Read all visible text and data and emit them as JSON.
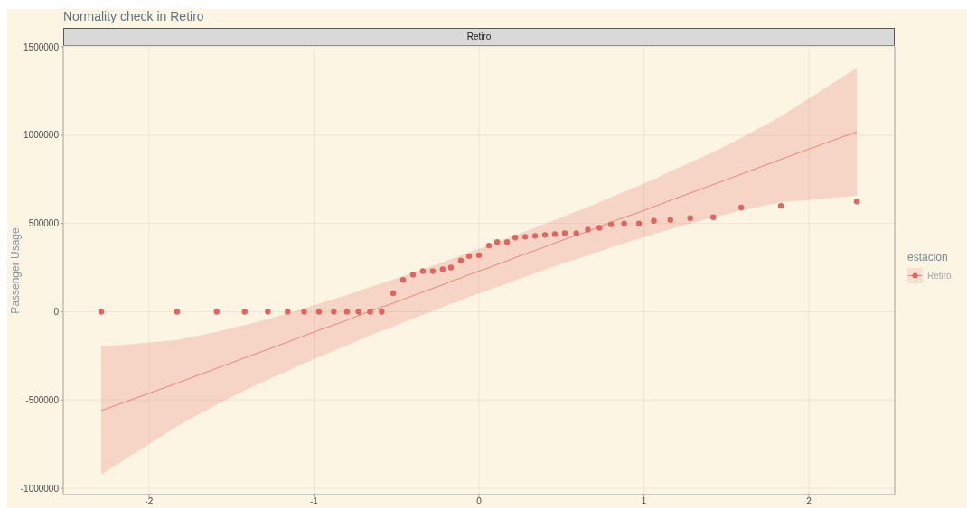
{
  "chart_data": {
    "type": "scatter",
    "title": "Normality check in Retiro",
    "subtitle": "Retiro",
    "ylabel": "Passenger Usage",
    "legend_title": "estacion",
    "legend": "right",
    "grid": true,
    "xlim": [
      -2.52,
      2.52
    ],
    "xticks": [
      -2,
      -1,
      0,
      1,
      2
    ],
    "ylim": [
      -1035000,
      1505000
    ],
    "yticks": [
      -1000000,
      -500000,
      0,
      500000,
      1000000,
      1500000
    ],
    "x": [
      -2.29,
      -1.83,
      -1.59,
      -1.42,
      -1.28,
      -1.16,
      -1.06,
      -0.97,
      -0.88,
      -0.8,
      -0.73,
      -0.66,
      -0.59,
      -0.52,
      -0.46,
      -0.4,
      -0.34,
      -0.28,
      -0.22,
      -0.17,
      -0.11,
      -0.06,
      0,
      0.06,
      0.11,
      0.17,
      0.22,
      0.28,
      0.34,
      0.4,
      0.46,
      0.52,
      0.59,
      0.66,
      0.73,
      0.8,
      0.88,
      0.97,
      1.06,
      1.16,
      1.28,
      1.42,
      1.59,
      1.83,
      2.29
    ],
    "series": [
      {
        "type": "line",
        "color": "#e2635f",
        "values": [
          -560000,
          -404000,
          -320000,
          -261000,
          -213000,
          -172000,
          -136000,
          -104000,
          -75000,
          -48000,
          -22000,
          3000,
          26000,
          49000,
          70000,
          91000,
          112000,
          132000,
          152000,
          172000,
          191000,
          210000,
          230000,
          249000,
          268000,
          288000,
          307000,
          327000,
          347000,
          368000,
          389000,
          410000,
          433000,
          456000,
          481000,
          507000,
          534000,
          563000,
          595000,
          631000,
          672000,
          720000,
          779000,
          863000,
          1019000
        ],
        "lower": [
          -922000,
          -648000,
          -526000,
          -446000,
          -385000,
          -335000,
          -292000,
          -255000,
          -221000,
          -190000,
          -161000,
          -134000,
          -109000,
          -84000,
          -61000,
          -39000,
          -17000,
          4000,
          25000,
          44000,
          64000,
          84000,
          103000,
          122000,
          142000,
          160000,
          179000,
          198000,
          218000,
          237000,
          257000,
          278000,
          298000,
          319000,
          341000,
          364000,
          388000,
          413000,
          440000,
          468000,
          500000,
          534000,
          573000,
          619000,
          657000
        ],
        "upper": [
          -198000,
          -160000,
          -114000,
          -75000,
          -41000,
          -9000,
          20000,
          46000,
          71000,
          95000,
          118000,
          140000,
          161000,
          182000,
          202000,
          222000,
          241000,
          260000,
          280000,
          299000,
          318000,
          337000,
          356000,
          375000,
          395000,
          415000,
          434000,
          455000,
          476000,
          498000,
          520000,
          543000,
          568000,
          593000,
          620000,
          649000,
          680000,
          714000,
          751000,
          794000,
          844000,
          905000,
          985000,
          1107000,
          1381000
        ]
      },
      {
        "type": "scatter",
        "name": "Retiro",
        "color": "#e2635f",
        "marker": "circle",
        "values": [
          0,
          0,
          0,
          0,
          0,
          0,
          0,
          0,
          0,
          0,
          0,
          0,
          0,
          105000,
          180000,
          210000,
          230000,
          230000,
          240000,
          250000,
          290000,
          315000,
          320000,
          375000,
          395000,
          395000,
          420000,
          425000,
          430000,
          435000,
          440000,
          445000,
          445000,
          465000,
          475000,
          495000,
          500000,
          500000,
          515000,
          520000,
          530000,
          535000,
          590000,
          600000,
          625000
        ]
      }
    ]
  }
}
